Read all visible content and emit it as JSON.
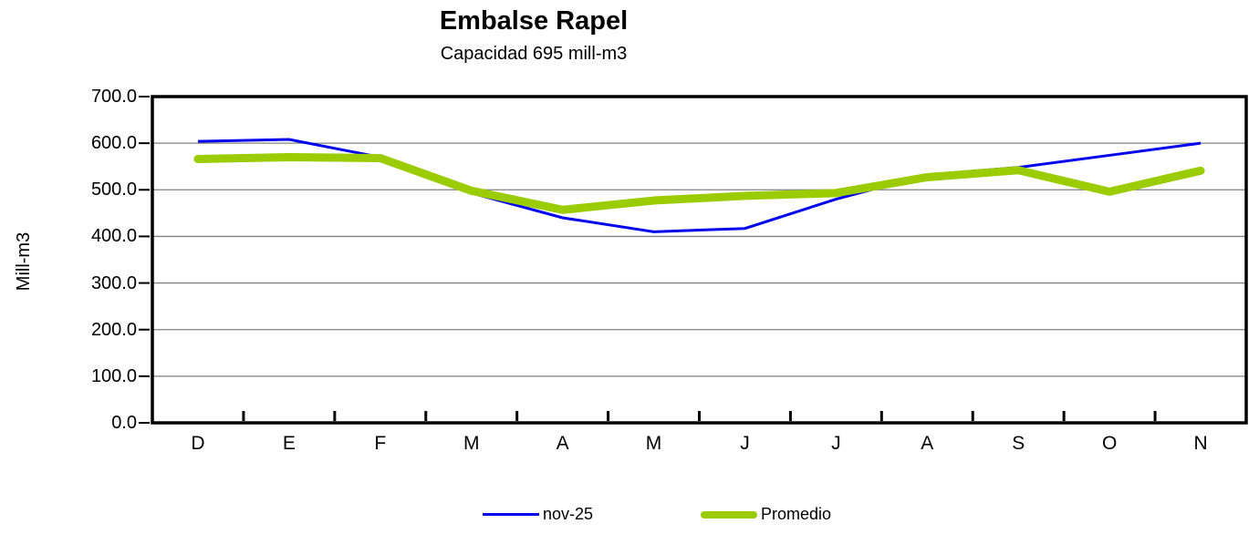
{
  "chart_data": {
    "type": "line",
    "title": "Embalse Rapel",
    "subtitle": "Capacidad 695 mill-m3",
    "ylabel": "Mill-m3",
    "ylim": [
      0,
      700
    ],
    "ytick_step": 100,
    "ytick_labels": [
      "0.0",
      "100.0",
      "200.0",
      "300.0",
      "400.0",
      "500.0",
      "600.0",
      "700.0"
    ],
    "categories": [
      "D",
      "E",
      "F",
      "M",
      "A",
      "M",
      "J",
      "J",
      "A",
      "S",
      "O",
      "N"
    ],
    "series": [
      {
        "name": "nov-25",
        "color": "#0000ee",
        "stroke_width": 3,
        "values": [
          604,
          608,
          570,
          493,
          440,
          410,
          417,
          480,
          532,
          548,
          574,
          600
        ]
      },
      {
        "name": "Promedio",
        "color": "#9acc00",
        "stroke_width": 9,
        "values": [
          566,
          570,
          568,
          498,
          457,
          477,
          487,
          493,
          527,
          542,
          496,
          541
        ]
      }
    ],
    "grid": true,
    "gridline_color": "#808080",
    "axis_frame_color": "#000000",
    "legend_position": "bottom"
  }
}
